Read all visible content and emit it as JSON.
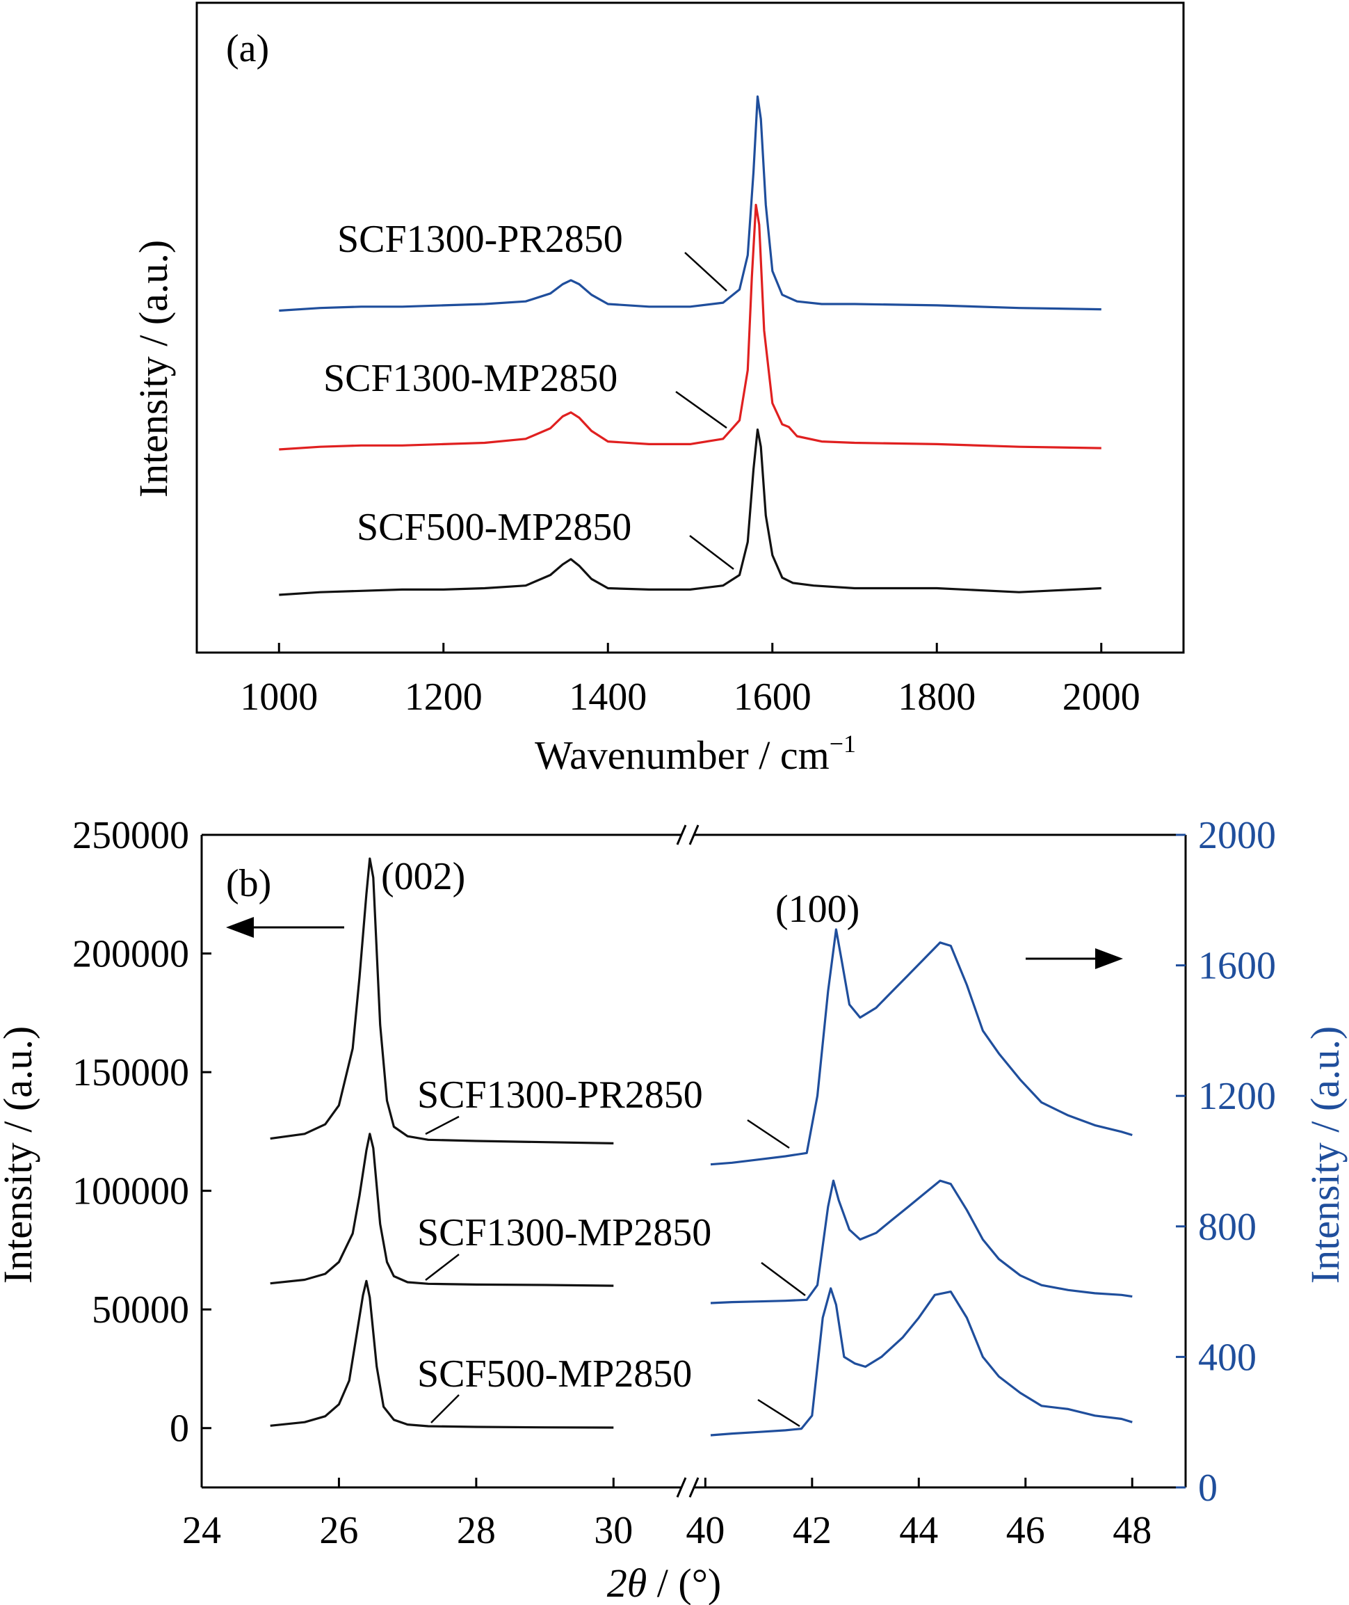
{
  "chart_data": [
    {
      "type": "line",
      "panel_label": "(a)",
      "xlabel": "Wavenumber / cm",
      "xlabel_sup": "−1",
      "ylabel": "Intensity / (a.u.)",
      "xlim": [
        900,
        2100
      ],
      "xticks": [
        1000,
        1200,
        1400,
        1600,
        1800,
        2000
      ],
      "xtick_labels": [
        "1000",
        "1200",
        "1400",
        "1600",
        "1800",
        "2000"
      ],
      "y_ticks_shown": false,
      "series": [
        {
          "name": "SCF1300-PR2850",
          "color": "#1f4e9c",
          "offset": 2.15,
          "x": [
            1000,
            1050,
            1100,
            1150,
            1200,
            1250,
            1300,
            1330,
            1345,
            1355,
            1365,
            1380,
            1400,
            1450,
            1500,
            1540,
            1560,
            1570,
            1577,
            1582,
            1586,
            1592,
            1600,
            1612,
            1630,
            1660,
            1700,
            1800,
            1900,
            2000
          ],
          "y": [
            0.0,
            0.02,
            0.03,
            0.03,
            0.04,
            0.05,
            0.07,
            0.13,
            0.2,
            0.23,
            0.2,
            0.12,
            0.05,
            0.03,
            0.03,
            0.06,
            0.16,
            0.42,
            1.05,
            1.62,
            1.45,
            0.8,
            0.3,
            0.12,
            0.07,
            0.05,
            0.05,
            0.04,
            0.02,
            0.01
          ]
        },
        {
          "name": "SCF1300-MP2850",
          "color": "#e02020",
          "offset": 1.1,
          "x": [
            1000,
            1050,
            1100,
            1150,
            1200,
            1250,
            1300,
            1330,
            1345,
            1355,
            1365,
            1380,
            1400,
            1450,
            1500,
            1540,
            1560,
            1570,
            1575,
            1580,
            1584,
            1590,
            1600,
            1612,
            1620,
            1630,
            1660,
            1700,
            1800,
            1900,
            2000
          ],
          "y": [
            0.0,
            0.02,
            0.03,
            0.03,
            0.04,
            0.05,
            0.08,
            0.16,
            0.25,
            0.28,
            0.24,
            0.14,
            0.06,
            0.04,
            0.04,
            0.08,
            0.22,
            0.6,
            1.3,
            1.85,
            1.7,
            0.9,
            0.35,
            0.19,
            0.17,
            0.1,
            0.06,
            0.05,
            0.04,
            0.02,
            0.01
          ]
        },
        {
          "name": "SCF500-MP2850",
          "color": "#111111",
          "offset": 0.0,
          "x": [
            1000,
            1050,
            1100,
            1150,
            1200,
            1250,
            1300,
            1330,
            1345,
            1355,
            1365,
            1380,
            1400,
            1450,
            1500,
            1540,
            1560,
            1570,
            1577,
            1582,
            1586,
            1592,
            1600,
            1612,
            1625,
            1650,
            1700,
            1800,
            1900,
            2000
          ],
          "y": [
            0.0,
            0.02,
            0.03,
            0.04,
            0.04,
            0.05,
            0.07,
            0.15,
            0.23,
            0.27,
            0.22,
            0.12,
            0.05,
            0.04,
            0.04,
            0.07,
            0.15,
            0.4,
            0.95,
            1.25,
            1.12,
            0.6,
            0.3,
            0.13,
            0.09,
            0.07,
            0.05,
            0.05,
            0.02,
            0.05
          ]
        }
      ]
    },
    {
      "type": "line",
      "panel_label": "(b)",
      "xlabel_symbol": "2θ",
      "xlabel_unit": " / (°)",
      "ylabel_left": "Intensity / (a.u.)",
      "ylabel_right": "Intensity / (a.u.)",
      "x_axis_break": true,
      "left_xlim": [
        24,
        31
      ],
      "right_xlim": [
        39.8,
        49
      ],
      "left_xticks": [
        24,
        26,
        28,
        30
      ],
      "left_xtick_labels": [
        "24",
        "26",
        "28",
        "30"
      ],
      "right_xticks": [
        40,
        42,
        44,
        46,
        48
      ],
      "right_xtick_labels": [
        "40",
        "42",
        "44",
        "46",
        "48"
      ],
      "ylim_left": [
        -25000,
        250000
      ],
      "yticks_left": [
        0,
        50000,
        100000,
        150000,
        200000,
        250000
      ],
      "ytick_labels_left": [
        "0",
        "50000",
        "100000",
        "150000",
        "200000",
        "250000"
      ],
      "ylim_right": [
        0,
        2000
      ],
      "yticks_right": [
        0,
        400,
        800,
        1200,
        1600,
        2000
      ],
      "ytick_labels_right": [
        "0",
        "400",
        "800",
        "1200",
        "1600",
        "2000"
      ],
      "right_axis_color": "#1f4e9c",
      "peak_labels": [
        "(002)",
        "(100)"
      ],
      "series": [
        {
          "name": "SCF1300-PR2850",
          "color_left": "#111111",
          "color_right": "#1f4e9c",
          "left_x": [
            25.0,
            25.5,
            25.8,
            26.0,
            26.2,
            26.3,
            26.4,
            26.45,
            26.5,
            26.6,
            26.7,
            26.8,
            27.0,
            27.3,
            28,
            29,
            30
          ],
          "left_y": [
            122000,
            124000,
            128000,
            136000,
            160000,
            190000,
            225000,
            240000,
            232000,
            170000,
            138000,
            127000,
            123000,
            121500,
            121000,
            120500,
            120000
          ],
          "right_x": [
            40.1,
            40.5,
            41.0,
            41.5,
            41.9,
            42.1,
            42.3,
            42.45,
            42.55,
            42.7,
            42.9,
            43.2,
            43.5,
            43.8,
            44.1,
            44.4,
            44.6,
            44.9,
            45.2,
            45.5,
            45.9,
            46.3,
            46.8,
            47.3,
            47.8,
            48.0
          ],
          "right_y": [
            990,
            995,
            1005,
            1015,
            1025,
            1200,
            1520,
            1710,
            1620,
            1480,
            1440,
            1470,
            1520,
            1570,
            1620,
            1670,
            1660,
            1540,
            1400,
            1330,
            1250,
            1180,
            1140,
            1110,
            1090,
            1080
          ]
        },
        {
          "name": "SCF1300-MP2850",
          "color_left": "#111111",
          "color_right": "#1f4e9c",
          "left_x": [
            25.0,
            25.5,
            25.8,
            26.0,
            26.2,
            26.3,
            26.4,
            26.45,
            26.5,
            26.6,
            26.7,
            26.8,
            27.0,
            27.3,
            28,
            29,
            30
          ],
          "left_y": [
            61000,
            62500,
            65000,
            70000,
            82000,
            98000,
            117000,
            124000,
            118000,
            86000,
            70000,
            64000,
            61500,
            60800,
            60500,
            60300,
            60000
          ],
          "right_x": [
            40.1,
            40.5,
            41.0,
            41.5,
            41.9,
            42.1,
            42.3,
            42.4,
            42.5,
            42.7,
            42.9,
            43.2,
            43.5,
            43.8,
            44.1,
            44.4,
            44.6,
            44.9,
            45.2,
            45.5,
            45.9,
            46.3,
            46.8,
            47.3,
            47.8,
            48.0
          ],
          "right_y": [
            565,
            568,
            570,
            572,
            575,
            620,
            860,
            940,
            880,
            790,
            760,
            780,
            820,
            860,
            900,
            940,
            930,
            850,
            760,
            700,
            650,
            620,
            605,
            595,
            590,
            585
          ]
        },
        {
          "name": "SCF500-MP2850",
          "color_left": "#111111",
          "color_right": "#1f4e9c",
          "left_x": [
            25.0,
            25.5,
            25.8,
            26.0,
            26.15,
            26.25,
            26.35,
            26.4,
            26.45,
            26.55,
            26.65,
            26.8,
            27.0,
            27.3,
            28,
            29,
            30
          ],
          "left_y": [
            1000,
            2500,
            5000,
            10000,
            20000,
            38000,
            56000,
            62000,
            55000,
            26000,
            9000,
            3500,
            1500,
            800,
            500,
            300,
            200
          ],
          "right_x": [
            40.1,
            40.5,
            41.0,
            41.5,
            41.8,
            42.0,
            42.2,
            42.35,
            42.45,
            42.6,
            42.8,
            43.0,
            43.3,
            43.7,
            44.0,
            44.3,
            44.6,
            44.9,
            45.2,
            45.5,
            45.9,
            46.3,
            46.8,
            47.3,
            47.8,
            48.0
          ],
          "right_y": [
            160,
            165,
            170,
            175,
            180,
            220,
            520,
            610,
            560,
            400,
            380,
            370,
            400,
            460,
            520,
            590,
            600,
            520,
            400,
            340,
            290,
            250,
            240,
            220,
            210,
            200
          ]
        }
      ]
    }
  ]
}
